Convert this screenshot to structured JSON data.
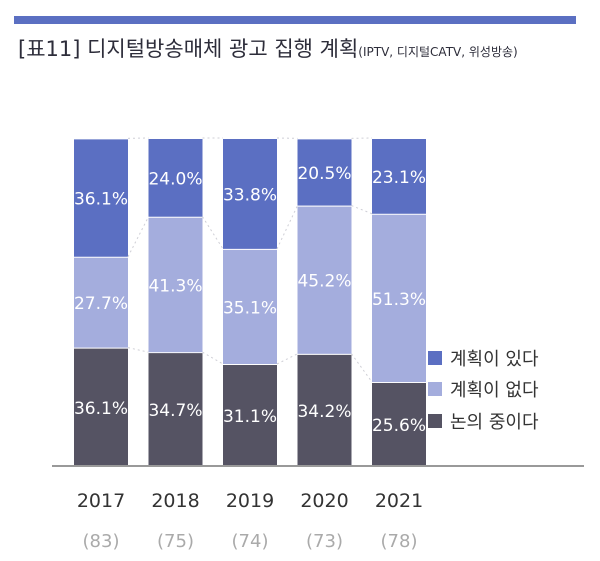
{
  "title": "[표11] 디지털방송매체 광고 집행 계획",
  "subtitle": "(IPTV, 디지털CATV, 위성방송)",
  "colors": {
    "accent": "#5b6fc2",
    "yes": "#5b6fc2",
    "no": "#a4addd",
    "discussing": "#555363",
    "axis": "#999999"
  },
  "chart_data": {
    "type": "bar",
    "stacked": true,
    "percent": true,
    "categories": [
      "2017",
      "2018",
      "2019",
      "2020",
      "2021"
    ],
    "counts": [
      "(83)",
      "(75)",
      "(74)",
      "(73)",
      "(78)"
    ],
    "series": [
      {
        "name": "논의 중이다",
        "values": [
          36.1,
          34.7,
          31.1,
          34.2,
          25.6
        ],
        "labels": [
          "36.1%",
          "34.7%",
          "31.1%",
          "34.2%",
          "25.6%"
        ],
        "color": "#555363"
      },
      {
        "name": "계획이 없다",
        "values": [
          27.7,
          41.3,
          35.1,
          45.2,
          51.3
        ],
        "labels": [
          "27.7%",
          "41.3%",
          "35.1%",
          "45.2%",
          "51.3%"
        ],
        "color": "#a4addd"
      },
      {
        "name": "계획이 있다",
        "values": [
          36.1,
          24.0,
          33.8,
          20.5,
          23.1
        ],
        "labels": [
          "36.1%",
          "24.0%",
          "33.8%",
          "20.5%",
          "23.1%"
        ],
        "color": "#5b6fc2"
      }
    ],
    "legend": [
      {
        "name": "계획이 있다",
        "color": "#5b6fc2"
      },
      {
        "name": "계획이 없다",
        "color": "#a4addd"
      },
      {
        "name": "논의 중이다",
        "color": "#555363"
      }
    ],
    "legend_position": "right",
    "ylim": [
      0,
      100
    ]
  }
}
